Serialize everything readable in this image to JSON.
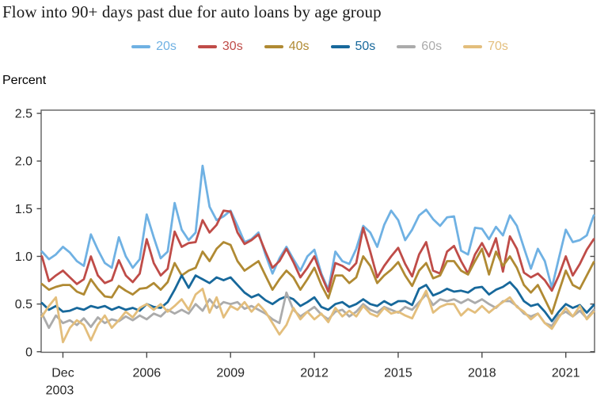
{
  "title": "Flow into 90+ days past due for auto loans by age group",
  "y_axis": {
    "label": "Percent",
    "tick_labels": [
      "0",
      "0.5",
      "1.0",
      "1.5",
      "2.0",
      "2.5"
    ],
    "tick_values": [
      0,
      0.5,
      1.0,
      1.5,
      2.0,
      2.5
    ]
  },
  "x_axis": {
    "ticks": [
      {
        "line1": "Dec",
        "line2": "2003",
        "q": 3
      },
      {
        "line1": "2006",
        "q": 15
      },
      {
        "line1": "2009",
        "q": 27
      },
      {
        "line1": "2012",
        "q": 39
      },
      {
        "line1": "2015",
        "q": 51
      },
      {
        "line1": "2018",
        "q": 63
      },
      {
        "line1": "2021",
        "q": 75
      }
    ]
  },
  "chart_data": {
    "type": "line",
    "title": "Flow into 90+ days past due for auto loans by age group",
    "ylabel": "Percent",
    "ylim": [
      0,
      2.5
    ],
    "grid": false,
    "legend_position": "top-center",
    "x_unit": "quarterly",
    "x_start": "2003 Q1",
    "x_end": "2022 Q4",
    "x_tick_quarters": [
      "Dec 2003",
      "2006",
      "2009",
      "2012",
      "2015",
      "2018",
      "2021"
    ],
    "series": [
      {
        "name": "20s",
        "color": "#6FB1E3",
        "values": [
          1.05,
          0.97,
          1.02,
          1.1,
          1.04,
          0.95,
          0.9,
          1.23,
          1.07,
          0.93,
          0.88,
          1.2,
          1.0,
          0.88,
          0.97,
          1.44,
          1.2,
          0.98,
          1.05,
          1.56,
          1.28,
          1.17,
          1.25,
          1.95,
          1.52,
          1.38,
          1.42,
          1.48,
          1.32,
          1.15,
          1.18,
          1.25,
          1.02,
          0.82,
          0.98,
          1.1,
          0.97,
          0.85,
          1.0,
          1.07,
          0.82,
          0.65,
          1.05,
          0.95,
          0.92,
          1.08,
          1.32,
          1.25,
          1.1,
          1.33,
          1.48,
          1.38,
          1.17,
          1.28,
          1.43,
          1.49,
          1.39,
          1.32,
          1.41,
          1.42,
          1.06,
          1.02,
          1.3,
          1.29,
          1.18,
          1.31,
          1.22,
          1.43,
          1.32,
          1.09,
          0.87,
          1.08,
          0.95,
          0.67,
          0.98,
          1.28,
          1.15,
          1.17,
          1.22,
          1.43
        ]
      },
      {
        "name": "30s",
        "color": "#BF4C48",
        "values": [
          1.0,
          0.74,
          0.8,
          0.85,
          0.78,
          0.71,
          0.76,
          1.0,
          0.8,
          0.72,
          0.75,
          0.96,
          0.8,
          0.73,
          0.82,
          1.18,
          0.93,
          0.8,
          0.87,
          1.26,
          1.1,
          1.14,
          1.15,
          1.38,
          1.25,
          1.33,
          1.48,
          1.47,
          1.25,
          1.13,
          1.17,
          1.23,
          1.05,
          0.88,
          0.95,
          1.08,
          0.94,
          0.78,
          0.88,
          1.0,
          0.8,
          0.63,
          0.93,
          0.9,
          0.85,
          0.93,
          1.3,
          1.05,
          0.78,
          0.9,
          1.0,
          1.09,
          0.92,
          0.79,
          1.02,
          1.15,
          0.85,
          0.82,
          1.05,
          1.11,
          0.95,
          0.82,
          1.02,
          1.14,
          1.0,
          1.19,
          0.84,
          1.21,
          1.08,
          0.83,
          0.78,
          0.82,
          0.75,
          0.64,
          0.8,
          1.0,
          0.8,
          0.92,
          1.07,
          1.18
        ]
      },
      {
        "name": "40s",
        "color": "#B08A33",
        "values": [
          0.71,
          0.65,
          0.68,
          0.7,
          0.7,
          0.63,
          0.6,
          0.76,
          0.66,
          0.58,
          0.57,
          0.69,
          0.64,
          0.6,
          0.66,
          0.67,
          0.72,
          0.65,
          0.73,
          0.93,
          0.8,
          0.85,
          0.88,
          1.05,
          0.95,
          1.08,
          1.15,
          1.12,
          0.95,
          0.85,
          0.9,
          0.95,
          0.8,
          0.65,
          0.76,
          0.85,
          0.78,
          0.65,
          0.76,
          0.88,
          0.7,
          0.56,
          0.8,
          0.8,
          0.72,
          0.78,
          1.0,
          0.9,
          0.72,
          0.8,
          0.86,
          0.94,
          0.8,
          0.69,
          0.85,
          0.93,
          0.77,
          0.8,
          0.95,
          0.95,
          0.85,
          0.81,
          0.95,
          1.08,
          0.81,
          1.05,
          0.9,
          1.0,
          0.88,
          0.7,
          0.62,
          0.7,
          0.55,
          0.4,
          0.63,
          0.85,
          0.7,
          0.66,
          0.8,
          0.94
        ]
      },
      {
        "name": "50s",
        "color": "#17689B",
        "values": [
          0.51,
          0.44,
          0.48,
          0.42,
          0.43,
          0.46,
          0.44,
          0.48,
          0.46,
          0.48,
          0.44,
          0.47,
          0.44,
          0.46,
          0.43,
          0.5,
          0.47,
          0.46,
          0.52,
          0.65,
          0.8,
          0.67,
          0.8,
          0.76,
          0.72,
          0.78,
          0.75,
          0.78,
          0.7,
          0.62,
          0.57,
          0.6,
          0.54,
          0.5,
          0.55,
          0.58,
          0.55,
          0.48,
          0.52,
          0.57,
          0.47,
          0.44,
          0.5,
          0.52,
          0.47,
          0.5,
          0.55,
          0.5,
          0.48,
          0.53,
          0.49,
          0.53,
          0.53,
          0.49,
          0.66,
          0.7,
          0.59,
          0.62,
          0.66,
          0.63,
          0.64,
          0.62,
          0.67,
          0.68,
          0.6,
          0.65,
          0.68,
          0.73,
          0.65,
          0.53,
          0.48,
          0.5,
          0.42,
          0.32,
          0.42,
          0.5,
          0.46,
          0.49,
          0.41,
          0.49
        ]
      },
      {
        "name": "60s",
        "color": "#ABABAB",
        "values": [
          0.4,
          0.25,
          0.38,
          0.3,
          0.33,
          0.28,
          0.35,
          0.26,
          0.36,
          0.3,
          0.34,
          0.32,
          0.37,
          0.33,
          0.38,
          0.34,
          0.4,
          0.37,
          0.44,
          0.4,
          0.44,
          0.4,
          0.5,
          0.43,
          0.55,
          0.46,
          0.52,
          0.5,
          0.52,
          0.45,
          0.48,
          0.44,
          0.4,
          0.34,
          0.3,
          0.62,
          0.44,
          0.37,
          0.42,
          0.47,
          0.39,
          0.34,
          0.42,
          0.44,
          0.37,
          0.42,
          0.5,
          0.44,
          0.41,
          0.47,
          0.44,
          0.41,
          0.47,
          0.44,
          0.52,
          0.6,
          0.49,
          0.55,
          0.53,
          0.55,
          0.51,
          0.55,
          0.51,
          0.55,
          0.5,
          0.46,
          0.53,
          0.53,
          0.48,
          0.4,
          0.37,
          0.4,
          0.3,
          0.27,
          0.38,
          0.42,
          0.37,
          0.43,
          0.35,
          0.44
        ]
      },
      {
        "name": "70s",
        "color": "#E3BE7C",
        "values": [
          0.37,
          0.48,
          0.57,
          0.1,
          0.25,
          0.33,
          0.28,
          0.12,
          0.28,
          0.38,
          0.25,
          0.33,
          0.42,
          0.36,
          0.46,
          0.5,
          0.44,
          0.5,
          0.42,
          0.48,
          0.55,
          0.44,
          0.6,
          0.66,
          0.41,
          0.57,
          0.36,
          0.48,
          0.44,
          0.52,
          0.42,
          0.5,
          0.42,
          0.3,
          0.18,
          0.28,
          0.46,
          0.34,
          0.42,
          0.34,
          0.4,
          0.31,
          0.46,
          0.37,
          0.43,
          0.37,
          0.48,
          0.4,
          0.37,
          0.46,
          0.4,
          0.42,
          0.38,
          0.35,
          0.5,
          0.64,
          0.41,
          0.47,
          0.5,
          0.5,
          0.38,
          0.45,
          0.41,
          0.48,
          0.41,
          0.47,
          0.52,
          0.57,
          0.47,
          0.42,
          0.34,
          0.4,
          0.3,
          0.24,
          0.36,
          0.46,
          0.37,
          0.48,
          0.34,
          0.42
        ]
      }
    ]
  }
}
